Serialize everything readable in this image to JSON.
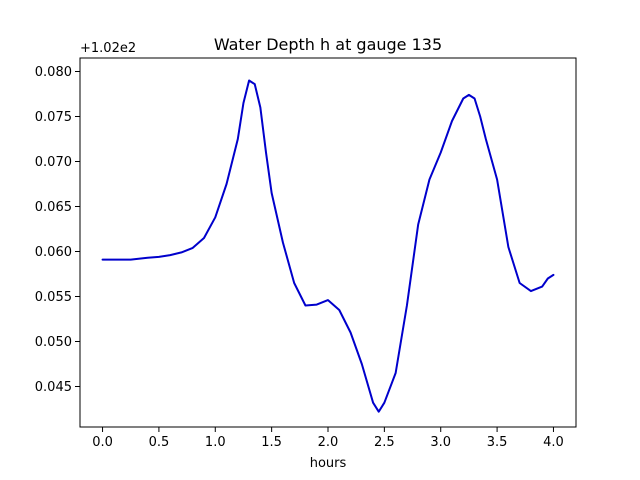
{
  "chart_data": {
    "type": "line",
    "title": "Water Depth h at gauge 135",
    "xlabel": "hours",
    "ylabel": "",
    "y_offset_label": "+1.02e2",
    "xlim": [
      -0.2,
      4.2
    ],
    "ylim": [
      0.0405,
      0.0815
    ],
    "x_ticks": [
      0.0,
      0.5,
      1.0,
      1.5,
      2.0,
      2.5,
      3.0,
      3.5,
      4.0
    ],
    "x_tick_labels": [
      "0.0",
      "0.5",
      "1.0",
      "1.5",
      "2.0",
      "2.5",
      "3.0",
      "3.5",
      "4.0"
    ],
    "y_ticks": [
      0.045,
      0.05,
      0.055,
      0.06,
      0.065,
      0.07,
      0.075,
      0.08
    ],
    "y_tick_labels": [
      "0.045",
      "0.050",
      "0.055",
      "0.060",
      "0.065",
      "0.070",
      "0.075",
      "0.080"
    ],
    "grid": false,
    "legend": "none",
    "series": [
      {
        "color": "#0000cc",
        "x": [
          0.0,
          0.1,
          0.25,
          0.4,
          0.5,
          0.6,
          0.7,
          0.8,
          0.9,
          1.0,
          1.1,
          1.2,
          1.25,
          1.3,
          1.35,
          1.4,
          1.45,
          1.5,
          1.6,
          1.7,
          1.8,
          1.9,
          2.0,
          2.1,
          2.2,
          2.3,
          2.4,
          2.45,
          2.5,
          2.6,
          2.7,
          2.8,
          2.9,
          3.0,
          3.1,
          3.2,
          3.25,
          3.3,
          3.35,
          3.4,
          3.5,
          3.6,
          3.7,
          3.8,
          3.9,
          3.95,
          4.0
        ],
        "y": [
          0.0591,
          0.0591,
          0.0591,
          0.0593,
          0.0594,
          0.0596,
          0.0599,
          0.0604,
          0.0615,
          0.0638,
          0.0675,
          0.0725,
          0.0765,
          0.079,
          0.0786,
          0.076,
          0.071,
          0.0665,
          0.061,
          0.0565,
          0.054,
          0.0541,
          0.0546,
          0.0535,
          0.051,
          0.0475,
          0.0432,
          0.0422,
          0.0432,
          0.0465,
          0.054,
          0.063,
          0.068,
          0.071,
          0.0745,
          0.077,
          0.0774,
          0.077,
          0.075,
          0.0725,
          0.068,
          0.0605,
          0.0565,
          0.0556,
          0.0561,
          0.057,
          0.0574
        ]
      }
    ]
  }
}
